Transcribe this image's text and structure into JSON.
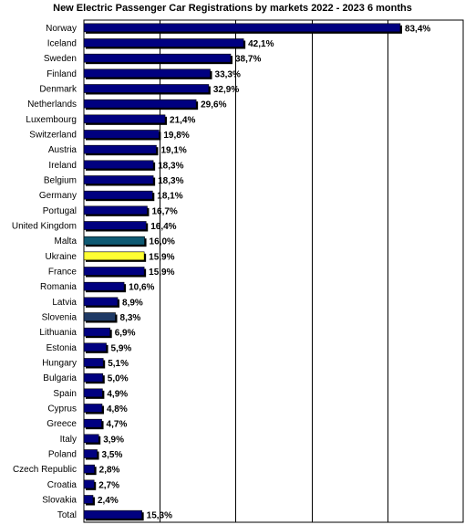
{
  "chart_data": {
    "type": "bar",
    "orientation": "horizontal",
    "title": "New Electric Passenger Car Registrations by markets 2022 - 2023 6 months",
    "xlabel": "",
    "ylabel": "",
    "xlim": [
      0,
      100
    ],
    "grid": true,
    "legend": "none",
    "colors": {
      "default": "#000080",
      "highlight_malta": "#0f5a73",
      "highlight_ukraine": "#ffff33",
      "highlight_slovenia": "#1f3a66",
      "shadow": "#000000",
      "grid": "#000000"
    },
    "categories": [
      "Norway",
      "Iceland",
      "Sweden",
      "Finland",
      "Denmark",
      "Netherlands",
      "Luxembourg",
      "Switzerland",
      "Austria",
      "Ireland",
      "Belgium",
      "Germany",
      "Portugal",
      "United Kingdom",
      "Malta",
      "Ukraine",
      "France",
      "Romania",
      "Latvia",
      "Slovenia",
      "Lithuania",
      "Estonia",
      "Hungary",
      "Bulgaria",
      "Spain",
      "Cyprus",
      "Greece",
      "Italy",
      "Poland",
      "Czech Republic",
      "Croatia",
      "Slovakia",
      "Total"
    ],
    "values": [
      83.4,
      42.1,
      38.7,
      33.3,
      32.9,
      29.6,
      21.4,
      19.8,
      19.1,
      18.3,
      18.3,
      18.1,
      16.7,
      16.4,
      16.0,
      15.9,
      15.9,
      10.6,
      8.9,
      8.3,
      6.9,
      5.9,
      5.1,
      5.0,
      4.9,
      4.8,
      4.7,
      3.9,
      3.5,
      2.8,
      2.7,
      2.4,
      15.3
    ],
    "labels": [
      "83,4%",
      "42,1%",
      "38,7%",
      "33,3%",
      "32,9%",
      "29,6%",
      "21,4%",
      "19,8%",
      "19,1%",
      "18,3%",
      "18,3%",
      "18,1%",
      "16,7%",
      "16,4%",
      "16,0%",
      "15,9%",
      "15,9%",
      "10,6%",
      "8,9%",
      "8,3%",
      "6,9%",
      "5,9%",
      "5,1%",
      "5,0%",
      "4,9%",
      "4,8%",
      "4,7%",
      "3,9%",
      "3,5%",
      "2,8%",
      "2,7%",
      "2,4%",
      "15,3%"
    ],
    "bar_colors": [
      "#000080",
      "#000080",
      "#000080",
      "#000080",
      "#000080",
      "#000080",
      "#000080",
      "#000080",
      "#000080",
      "#000080",
      "#000080",
      "#000080",
      "#000080",
      "#000080",
      "#0f5a73",
      "#ffff33",
      "#000080",
      "#000080",
      "#000080",
      "#1f3a66",
      "#000080",
      "#000080",
      "#000080",
      "#000080",
      "#000080",
      "#000080",
      "#000080",
      "#000080",
      "#000080",
      "#000080",
      "#000080",
      "#000080",
      "#000080"
    ]
  }
}
